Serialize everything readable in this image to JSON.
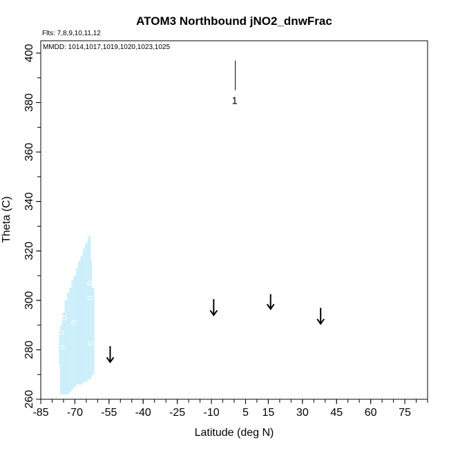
{
  "chart_data": {
    "type": "scatter",
    "title": "ATOM3 Northbound jNO2_dnwFrac",
    "flights_note": "Flts: 7,8,9,10,11,12",
    "dates_note": "MMDD: 1014,1017,1019,1020,1023,1025",
    "xlabel": "Latitude (deg N)",
    "ylabel": "Theta (C)",
    "xlim": [
      -85,
      85
    ],
    "ylim": [
      260,
      405
    ],
    "x_ticks": [
      -85,
      -70,
      -55,
      -40,
      -25,
      -10,
      5,
      15,
      30,
      45,
      60,
      75
    ],
    "y_ticks": [
      260,
      280,
      300,
      320,
      340,
      360,
      380,
      400
    ],
    "grid": false,
    "fill_color": "#cdeffb",
    "marker_color": "#000000",
    "shaded_region": {
      "columns": [
        {
          "x": -76.5,
          "y_low": 274,
          "y_high": 288
        },
        {
          "x": -76,
          "y_low": 262,
          "y_high": 290
        },
        {
          "x": -75,
          "y_low": 262,
          "y_high": 295
        },
        {
          "x": -74,
          "y_low": 262,
          "y_high": 300
        },
        {
          "x": -73,
          "y_low": 262,
          "y_high": 303
        },
        {
          "x": -72,
          "y_low": 263,
          "y_high": 305
        },
        {
          "x": -71,
          "y_low": 264,
          "y_high": 308
        },
        {
          "x": -70,
          "y_low": 265,
          "y_high": 310
        },
        {
          "x": -69,
          "y_low": 266,
          "y_high": 313
        },
        {
          "x": -68,
          "y_low": 266,
          "y_high": 316
        },
        {
          "x": -67,
          "y_low": 266,
          "y_high": 318
        },
        {
          "x": -66,
          "y_low": 267,
          "y_high": 321
        },
        {
          "x": -65,
          "y_low": 267,
          "y_high": 323
        },
        {
          "x": -64,
          "y_low": 268,
          "y_high": 325
        },
        {
          "x": -63.5,
          "y_low": 268,
          "y_high": 326
        },
        {
          "x": -63,
          "y_low": 269,
          "y_high": 316
        },
        {
          "x": -62,
          "y_low": 270,
          "y_high": 305
        }
      ],
      "hollow_points": [
        {
          "x": -76,
          "y": 287
        },
        {
          "x": -75.5,
          "y": 281
        },
        {
          "x": -74.5,
          "y": 293
        },
        {
          "x": -70.5,
          "y": 291
        },
        {
          "x": -63.5,
          "y": 301
        },
        {
          "x": -63.5,
          "y": 307
        },
        {
          "x": -63,
          "y": 282.5
        }
      ]
    },
    "arrows": [
      {
        "x": -54.5,
        "y_top": 281.5,
        "y_bottom": 275
      },
      {
        "x": -9,
        "y_top": 300.5,
        "y_bottom": 294
      },
      {
        "x": 16,
        "y_top": 302.5,
        "y_bottom": 296.5
      },
      {
        "x": 38,
        "y_top": 297,
        "y_bottom": 290.5
      }
    ],
    "profiles": [
      {
        "x": 0.5,
        "y_low": 385,
        "y_high": 397,
        "label": "1"
      }
    ]
  }
}
